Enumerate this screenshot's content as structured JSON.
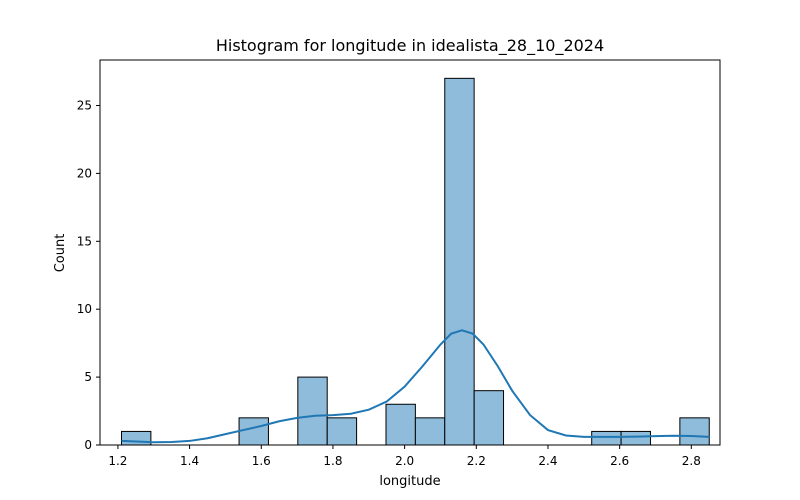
{
  "chart_data": {
    "type": "bar",
    "title": "Histogram for longitude in idealista_28_10_2024",
    "xlabel": "longitude",
    "ylabel": "Count",
    "xlim": [
      1.15,
      2.88
    ],
    "ylim": [
      0,
      28.35
    ],
    "xticks": [
      1.2,
      1.4,
      1.6,
      1.8,
      2.0,
      2.2,
      2.4,
      2.6,
      2.8
    ],
    "yticks": [
      0,
      5,
      10,
      15,
      20,
      25
    ],
    "bars": [
      {
        "x0": 1.21,
        "x1": 1.292,
        "count": 1
      },
      {
        "x0": 1.538,
        "x1": 1.62,
        "count": 2
      },
      {
        "x0": 1.702,
        "x1": 1.784,
        "count": 5
      },
      {
        "x0": 1.784,
        "x1": 1.866,
        "count": 2
      },
      {
        "x0": 1.948,
        "x1": 2.03,
        "count": 3
      },
      {
        "x0": 2.03,
        "x1": 2.112,
        "count": 2
      },
      {
        "x0": 2.112,
        "x1": 2.194,
        "count": 27
      },
      {
        "x0": 2.194,
        "x1": 2.276,
        "count": 4
      },
      {
        "x0": 2.522,
        "x1": 2.604,
        "count": 1
      },
      {
        "x0": 2.604,
        "x1": 2.686,
        "count": 1
      },
      {
        "x0": 2.768,
        "x1": 2.85,
        "count": 2
      }
    ],
    "kde": {
      "x": [
        1.21,
        1.26,
        1.3,
        1.35,
        1.4,
        1.45,
        1.5,
        1.55,
        1.6,
        1.65,
        1.7,
        1.75,
        1.8,
        1.85,
        1.9,
        1.95,
        2.0,
        2.05,
        2.1,
        2.13,
        2.16,
        2.19,
        2.22,
        2.26,
        2.3,
        2.35,
        2.4,
        2.45,
        2.5,
        2.55,
        2.6,
        2.65,
        2.7,
        2.75,
        2.8,
        2.85
      ],
      "y": [
        0.3,
        0.25,
        0.2,
        0.22,
        0.3,
        0.5,
        0.8,
        1.1,
        1.4,
        1.75,
        2.0,
        2.15,
        2.2,
        2.3,
        2.6,
        3.2,
        4.3,
        5.8,
        7.4,
        8.2,
        8.45,
        8.2,
        7.4,
        5.8,
        4.0,
        2.2,
        1.1,
        0.7,
        0.6,
        0.6,
        0.6,
        0.62,
        0.65,
        0.68,
        0.66,
        0.6
      ]
    },
    "colors": {
      "bar_fill": "#8fbcdb",
      "bar_edge": "#000000",
      "kde_line": "#1f77b4"
    },
    "grid": false,
    "legend": "none"
  }
}
